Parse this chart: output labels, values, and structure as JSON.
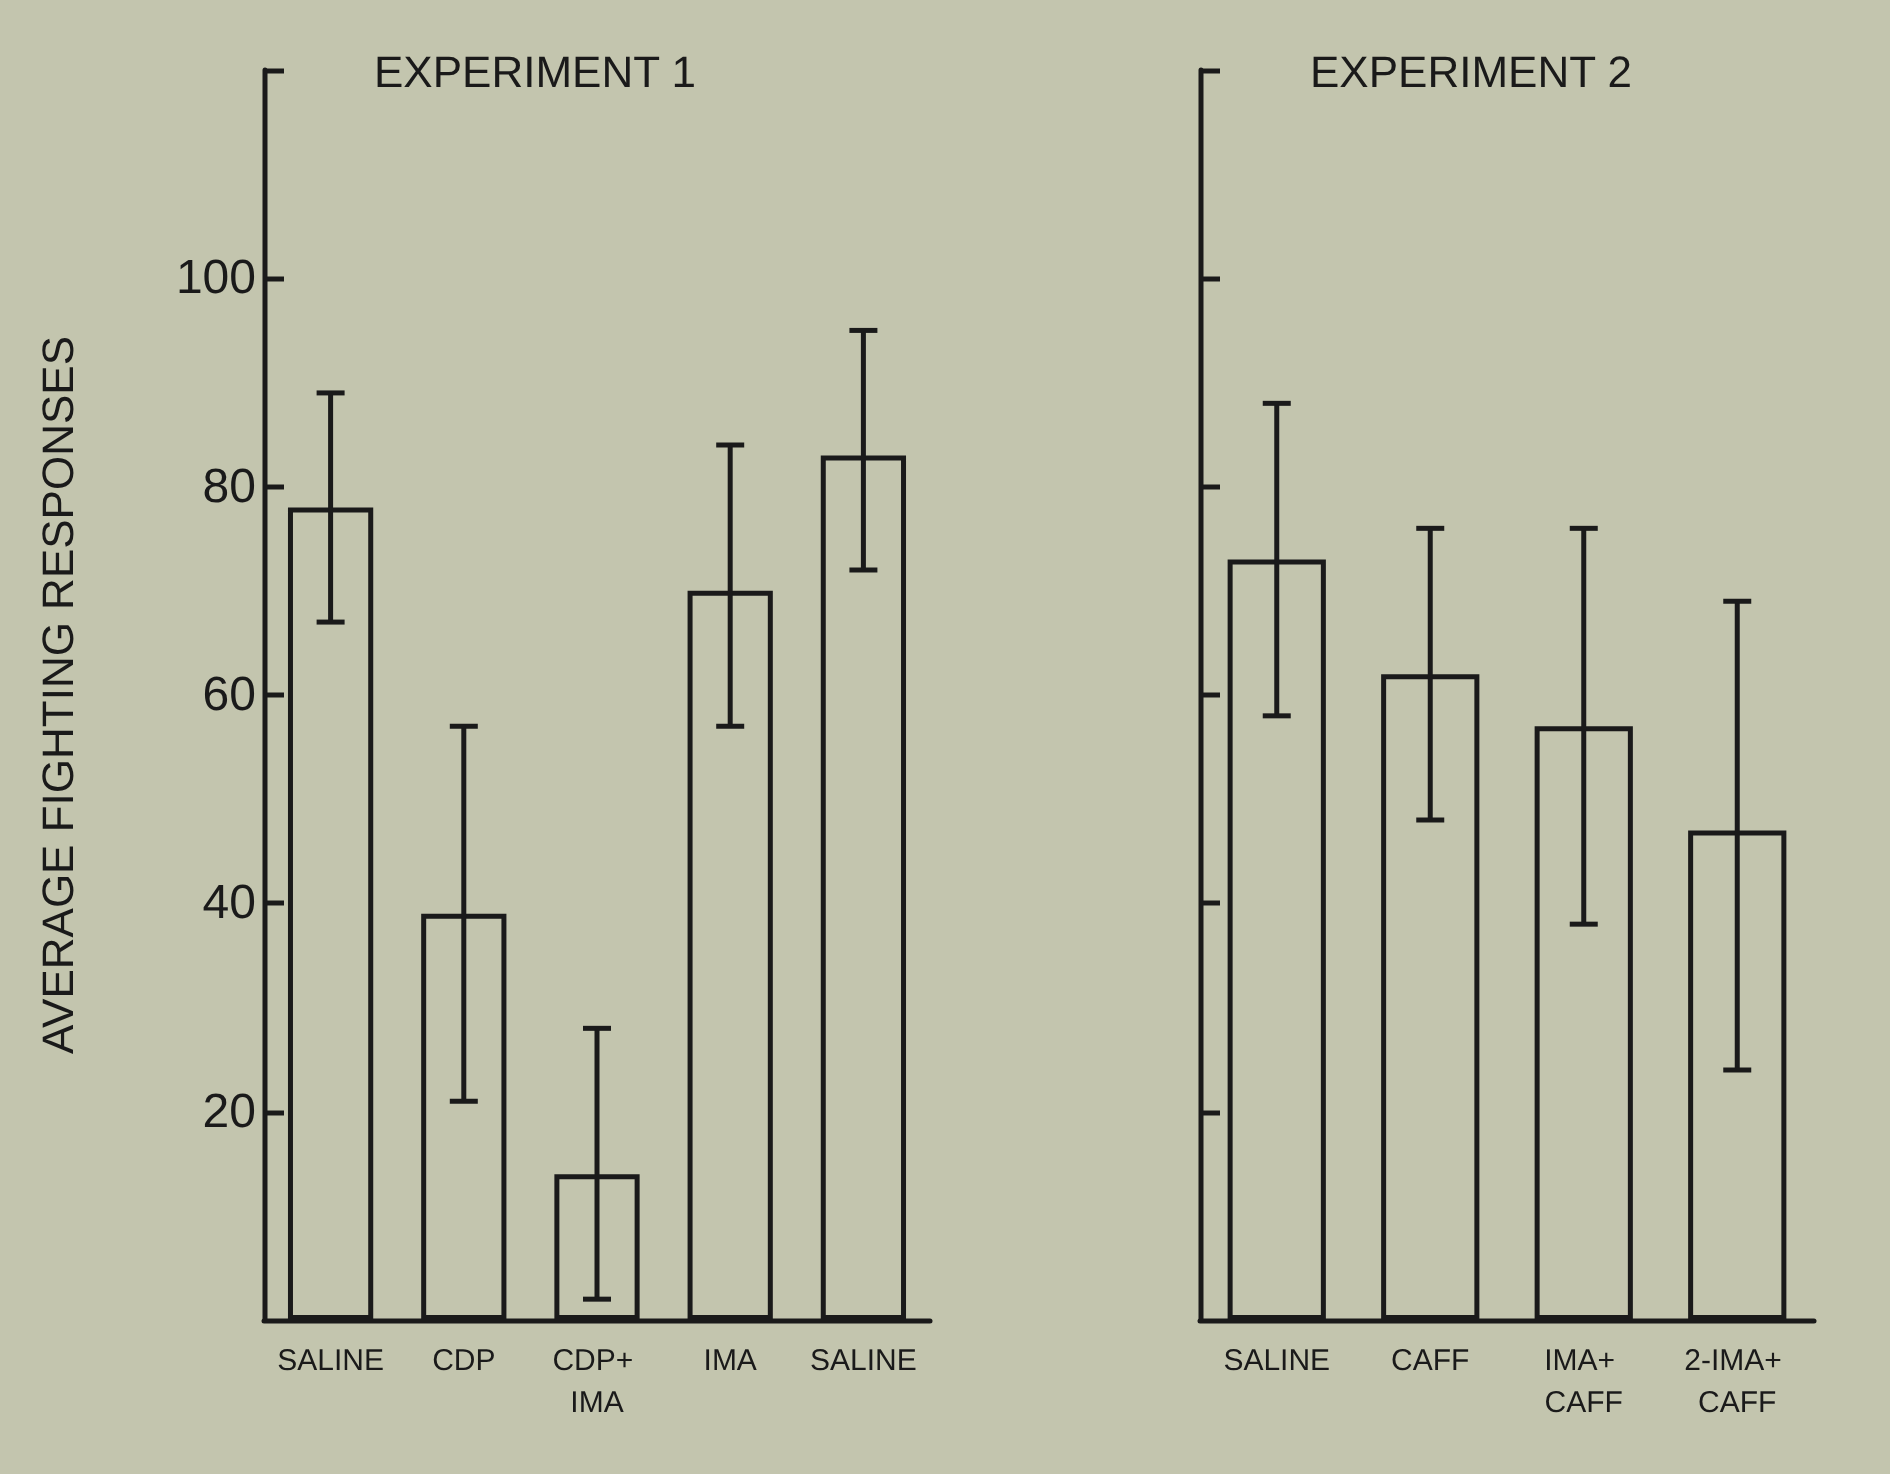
{
  "chart_data": [
    {
      "type": "bar",
      "title": "EXPERIMENT 1",
      "ylabel": "AVERAGE FIGHTING RESPONSES",
      "categories": [
        "SALINE",
        "CDP",
        "CDP+ IMA",
        "IMA",
        "SALINE"
      ],
      "values": [
        78,
        39,
        14,
        70,
        83
      ],
      "color": "#1a1a1a",
      "errors": [
        [
          67,
          89
        ],
        [
          21,
          57
        ],
        [
          2,
          28
        ],
        [
          57,
          84
        ],
        [
          72,
          95
        ]
      ],
      "ylim": [
        0,
        120
      ],
      "yticks": [
        20,
        40,
        60,
        80,
        100,
        {
          "value": 120,
          "label": null
        }
      ],
      "grid": false
    },
    {
      "type": "bar",
      "title": "EXPERIMENT 2",
      "categories": [
        "SALINE",
        "CAFF",
        "IMA+ CAFF",
        "2-IMA+ CAFF"
      ],
      "values": [
        73,
        62,
        57,
        47
      ],
      "color": "#1a1a1a",
      "errors": [
        [
          58,
          88
        ],
        [
          48,
          76
        ],
        [
          38,
          76
        ],
        [
          24,
          69
        ]
      ],
      "ylim": [
        0,
        120
      ],
      "yticks": [
        20,
        40,
        60,
        80,
        100,
        {
          "value": 120,
          "label": null
        }
      ],
      "grid": false,
      "tick_labels": "x"
    }
  ]
}
